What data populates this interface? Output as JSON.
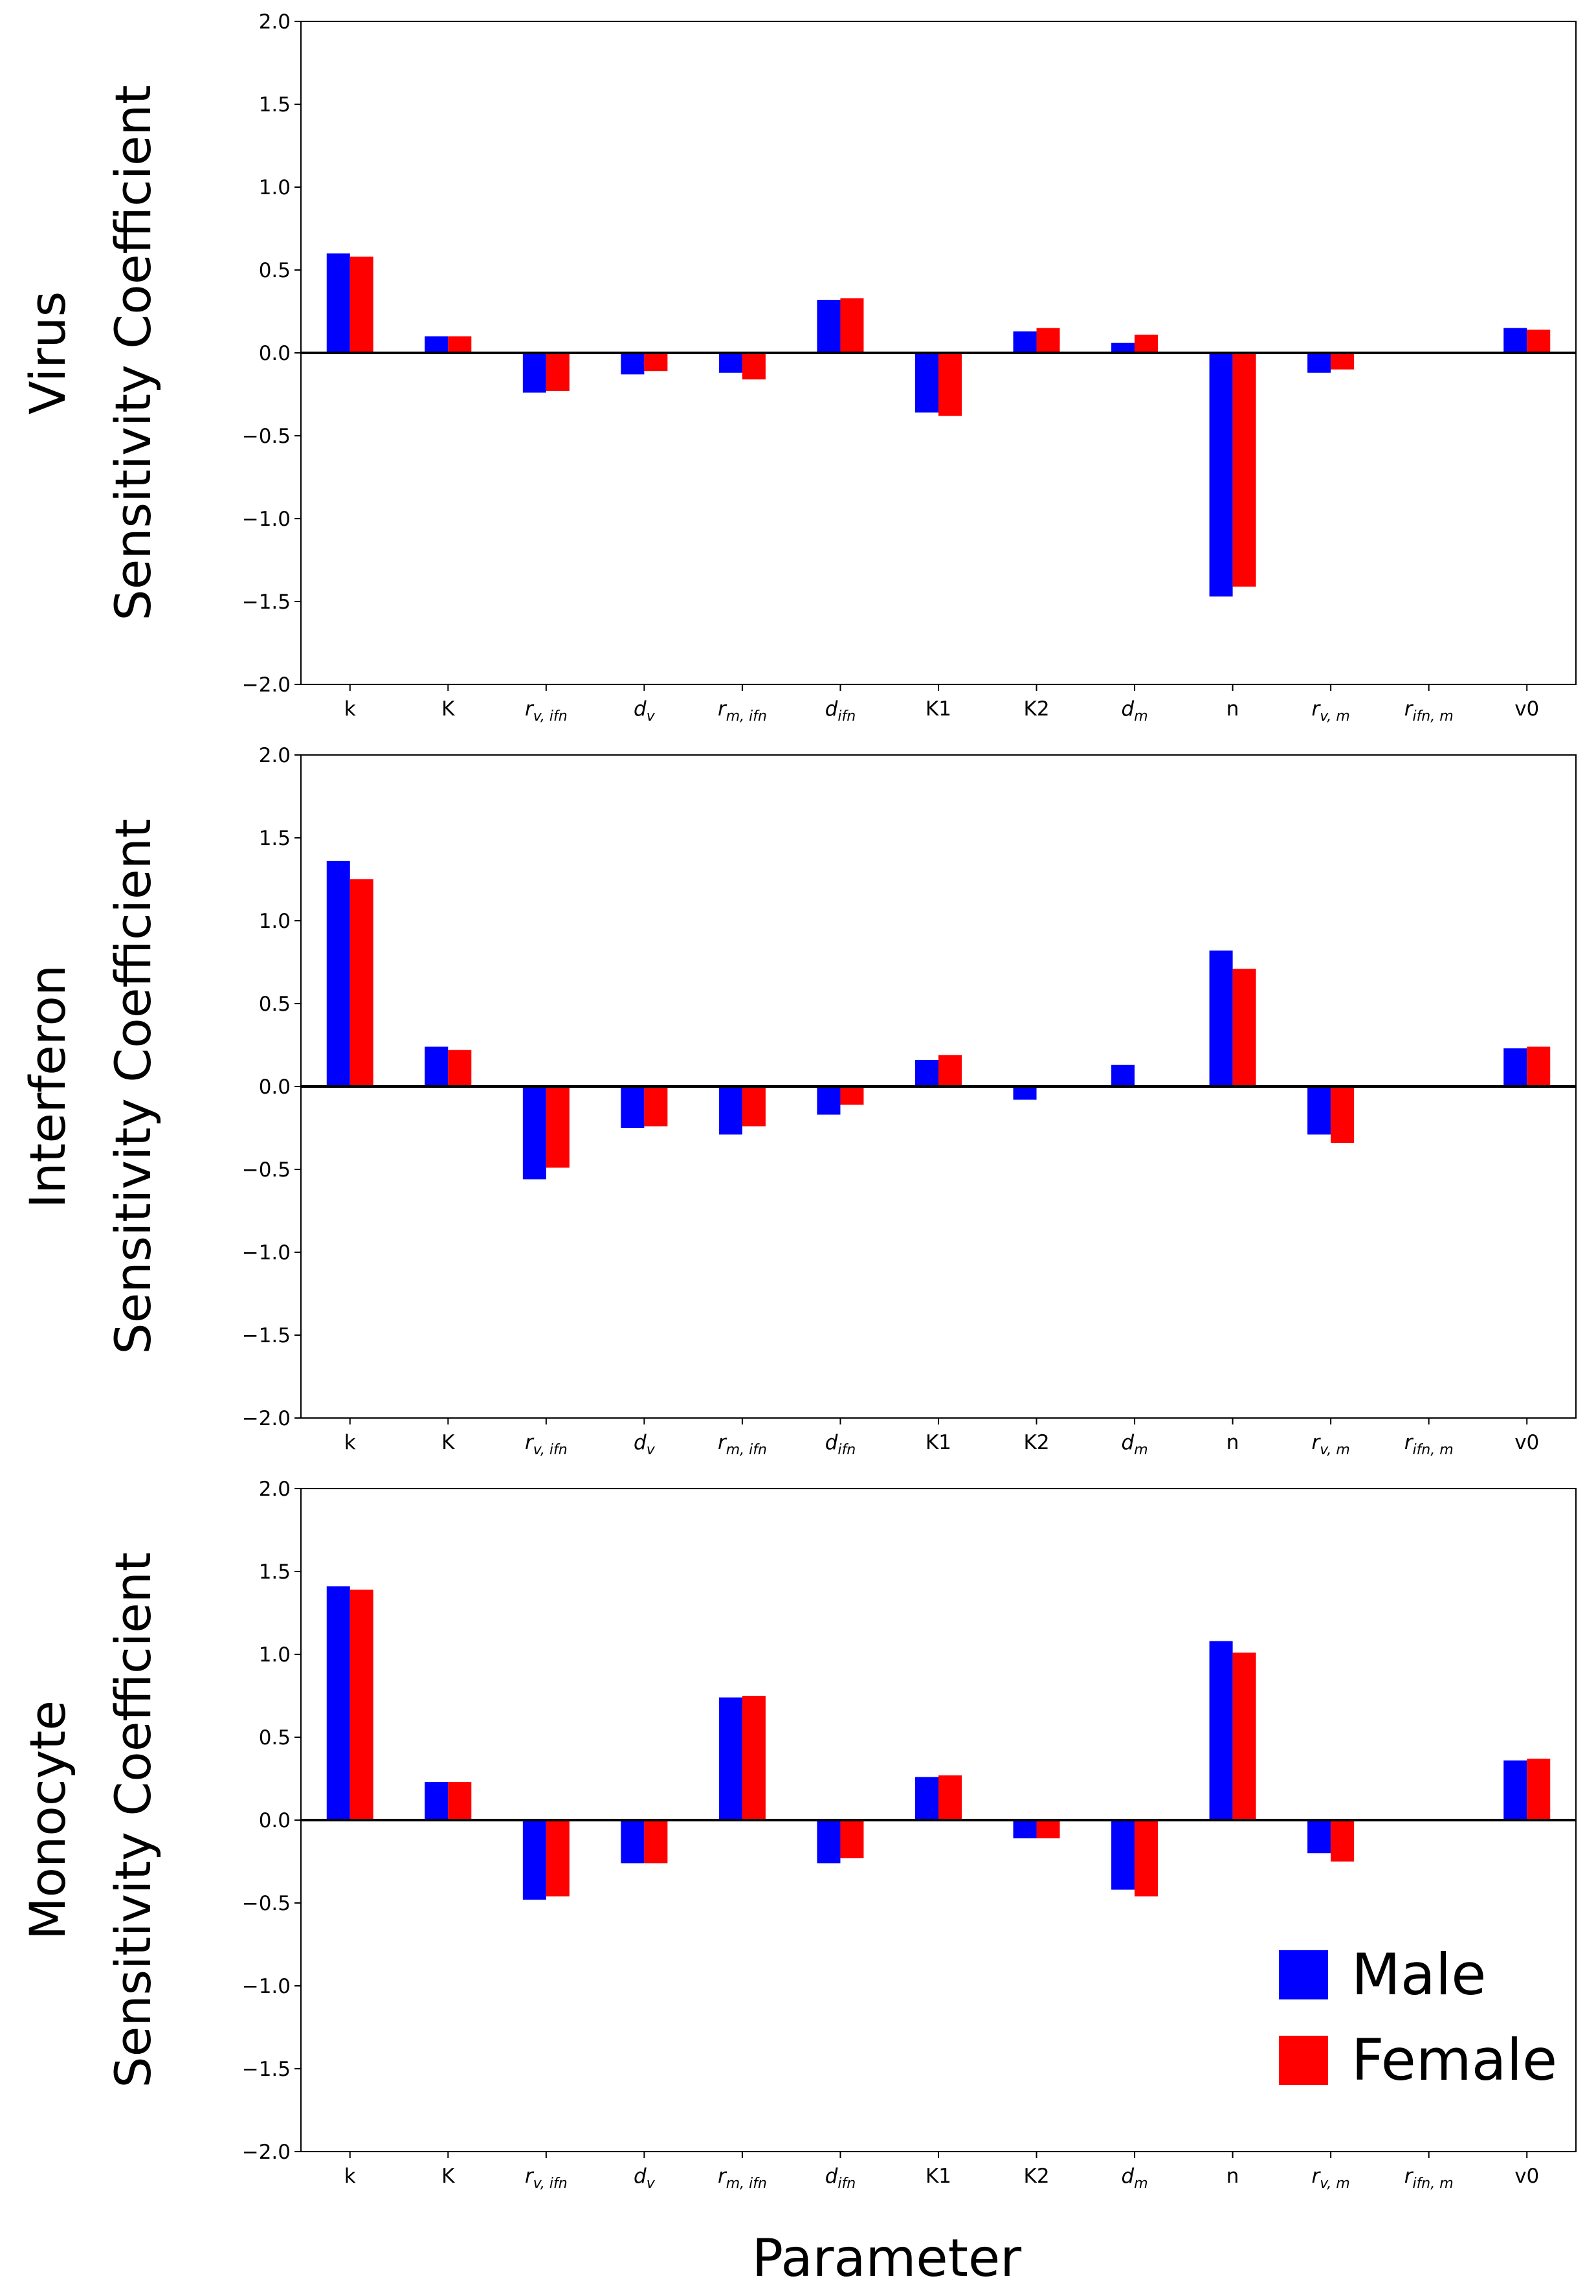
{
  "chart_data": [
    {
      "type": "bar",
      "title_line1": "Virus",
      "ylabel": "Sensitivity Coefficient",
      "ylim": [
        -2.0,
        2.0
      ],
      "yticks": [
        "2.0",
        "1.5",
        "1.0",
        "0.5",
        "0.0",
        "−0.5",
        "−1.0",
        "−1.5",
        "−2.0"
      ],
      "series": [
        {
          "name": "Male",
          "values": [
            0.6,
            0.1,
            -0.24,
            -0.13,
            -0.12,
            0.32,
            -0.36,
            0.13,
            0.06,
            -1.47,
            -0.12,
            0.0,
            0.15
          ]
        },
        {
          "name": "Female",
          "values": [
            0.58,
            0.1,
            -0.23,
            -0.11,
            -0.16,
            0.33,
            -0.38,
            0.15,
            0.11,
            -1.41,
            -0.1,
            0.0,
            0.14
          ]
        }
      ]
    },
    {
      "type": "bar",
      "title_line1": "Interferon",
      "ylabel": "Sensitivity Coefficient",
      "ylim": [
        -2.0,
        2.0
      ],
      "yticks": [
        "2.0",
        "1.5",
        "1.0",
        "0.5",
        "0.0",
        "−0.5",
        "−1.0",
        "−1.5",
        "−2.0"
      ],
      "series": [
        {
          "name": "Male",
          "values": [
            1.36,
            0.24,
            -0.56,
            -0.25,
            -0.29,
            -0.17,
            0.16,
            -0.08,
            0.13,
            0.82,
            -0.29,
            0.0,
            0.23
          ]
        },
        {
          "name": "Female",
          "values": [
            1.25,
            0.22,
            -0.49,
            -0.24,
            -0.24,
            -0.11,
            0.19,
            0.0,
            0.0,
            0.71,
            -0.34,
            0.0,
            0.24
          ]
        }
      ]
    },
    {
      "type": "bar",
      "title_line1": "Monocyte",
      "ylabel": "Sensitivity Coefficient",
      "ylim": [
        -2.0,
        2.0
      ],
      "yticks": [
        "2.0",
        "1.5",
        "1.0",
        "0.5",
        "0.0",
        "−0.5",
        "−1.0",
        "−1.5",
        "−2.0"
      ],
      "series": [
        {
          "name": "Male",
          "values": [
            1.41,
            0.23,
            -0.48,
            -0.26,
            0.74,
            -0.26,
            0.26,
            -0.11,
            -0.42,
            1.08,
            -0.2,
            0.0,
            0.36
          ]
        },
        {
          "name": "Female",
          "values": [
            1.39,
            0.23,
            -0.46,
            -0.26,
            0.75,
            -0.23,
            0.27,
            -0.11,
            -0.46,
            1.01,
            -0.25,
            0.0,
            0.37
          ]
        }
      ]
    }
  ],
  "categories": [
    {
      "base": "k",
      "sub": ""
    },
    {
      "base": "K",
      "sub": ""
    },
    {
      "base": "r",
      "sub": "v, ifn"
    },
    {
      "base": "d",
      "sub": "v"
    },
    {
      "base": "r",
      "sub": "m, ifn"
    },
    {
      "base": "d",
      "sub": "ifn"
    },
    {
      "base": "K1",
      "sub": ""
    },
    {
      "base": "K2",
      "sub": ""
    },
    {
      "base": "d",
      "sub": "m"
    },
    {
      "base": "n",
      "sub": ""
    },
    {
      "base": "r",
      "sub": "v, m"
    },
    {
      "base": "r",
      "sub": "ifn, m"
    },
    {
      "base": "v0",
      "sub": ""
    }
  ],
  "xlabel": "Parameter",
  "legend": [
    {
      "name": "Male",
      "color": "#0000ff"
    },
    {
      "name": "Female",
      "color": "#ff0000"
    }
  ],
  "colors": {
    "male": "#0000ff",
    "female": "#ff0000"
  }
}
